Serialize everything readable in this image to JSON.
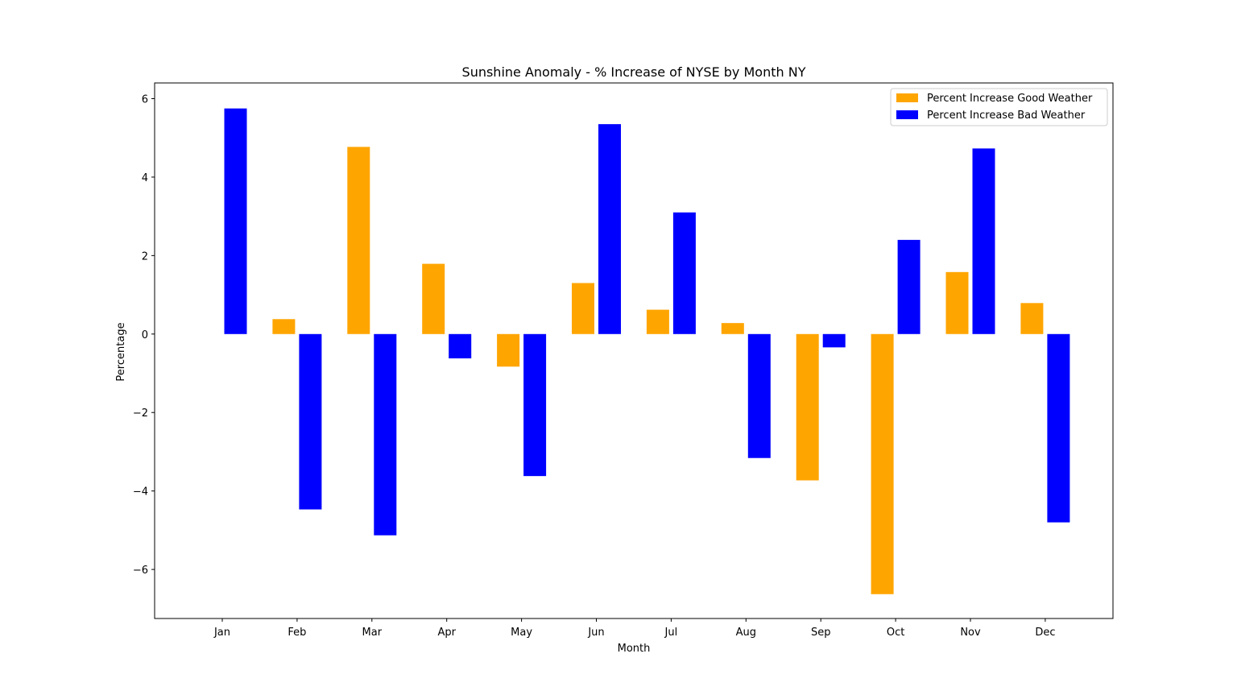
{
  "chart_data": {
    "type": "bar",
    "title": "Sunshine Anomaly - % Increase of NYSE by Month NY",
    "xlabel": "Month",
    "ylabel": "Percentage",
    "categories": [
      "Jan",
      "Feb",
      "Mar",
      "Apr",
      "May",
      "Jun",
      "Jul",
      "Aug",
      "Sep",
      "Oct",
      "Nov",
      "Dec"
    ],
    "ylim": [
      -7.25,
      6.4
    ],
    "yticks": [
      6,
      4,
      2,
      0,
      -2,
      -4,
      -6
    ],
    "ytick_labels": [
      "6",
      "4",
      "2",
      "0",
      "−2",
      "−4",
      "−6"
    ],
    "grid": false,
    "legend": "top-right",
    "series": [
      {
        "name": "Percent Increase Good Weather",
        "color": "#ffa500",
        "values": [
          0,
          0.38,
          4.77,
          1.79,
          -0.83,
          1.3,
          0.62,
          0.28,
          -3.73,
          -6.63,
          1.58,
          0.79
        ]
      },
      {
        "name": "Percent Increase Bad Weather",
        "color": "#0000ff",
        "values": [
          5.75,
          -4.47,
          -5.13,
          -0.62,
          -3.62,
          5.35,
          3.1,
          -3.16,
          -0.34,
          2.4,
          4.73,
          -4.8
        ]
      }
    ]
  }
}
